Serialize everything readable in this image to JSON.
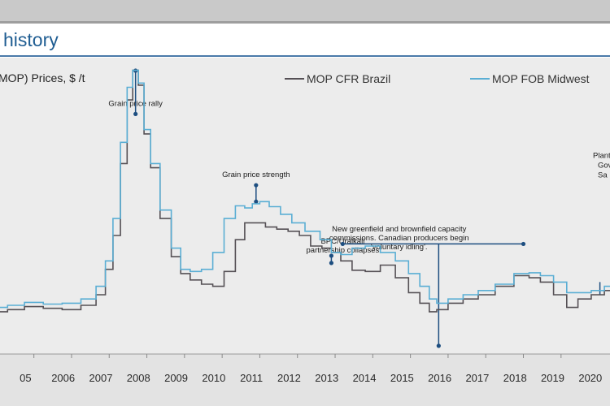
{
  "page_title": "history",
  "chart_data": {
    "type": "line",
    "title": "history",
    "ylabel": "MOP) Prices, $ /t",
    "xlabel": "",
    "ylim": [
      200,
      900
    ],
    "x_tick_labels": [
      "05",
      "2006",
      "2007",
      "2008",
      "2009",
      "2010",
      "2011",
      "2012",
      "2013",
      "2014",
      "2015",
      "2016",
      "2017",
      "2018",
      "2019",
      "2020"
    ],
    "x_tick_years": [
      2005,
      2006,
      2007,
      2008,
      2009,
      2010,
      2011,
      2012,
      2013,
      2014,
      2015,
      2016,
      2017,
      2018,
      2019,
      2020
    ],
    "xlim": [
      2005.1,
      2021.3
    ],
    "legend": [
      {
        "name": "MOP CFR Brazil",
        "color": "#555055"
      },
      {
        "name": "MOP FOB Midwest",
        "color": "#5aaed4"
      }
    ],
    "series": [
      {
        "name": "MOP CFR Brazil",
        "color": "#555055",
        "x": [
          2005.1,
          2005.5,
          2006.0,
          2006.5,
          2007.0,
          2007.5,
          2007.8,
          2008.0,
          2008.2,
          2008.4,
          2008.55,
          2008.7,
          2008.85,
          2009.0,
          2009.2,
          2009.5,
          2009.8,
          2010.0,
          2010.3,
          2010.6,
          2010.9,
          2011.2,
          2011.5,
          2011.7,
          2012.0,
          2012.3,
          2012.6,
          2012.9,
          2013.2,
          2013.5,
          2013.8,
          2014.0,
          2014.3,
          2014.6,
          2015.0,
          2015.4,
          2015.8,
          2016.1,
          2016.4,
          2016.6,
          2016.8,
          2017.2,
          2017.6,
          2018.0,
          2018.5,
          2019.0,
          2019.3,
          2019.6,
          2020.0,
          2020.3,
          2020.6,
          2021.0,
          2021.3
        ],
        "values": [
          300,
          305,
          312,
          308,
          305,
          315,
          340,
          400,
          480,
          650,
          800,
          870,
          835,
          720,
          640,
          520,
          430,
          390,
          375,
          365,
          360,
          395,
          470,
          510,
          510,
          500,
          495,
          490,
          480,
          455,
          450,
          440,
          420,
          398,
          395,
          410,
          380,
          345,
          320,
          300,
          305,
          320,
          330,
          340,
          360,
          385,
          380,
          370,
          340,
          310,
          330,
          340,
          350
        ]
      },
      {
        "name": "MOP FOB Midwest",
        "color": "#5aaed4",
        "x": [
          2005.1,
          2005.5,
          2006.0,
          2006.5,
          2007.0,
          2007.5,
          2007.8,
          2008.0,
          2008.2,
          2008.4,
          2008.55,
          2008.7,
          2008.85,
          2009.0,
          2009.2,
          2009.5,
          2009.8,
          2010.0,
          2010.3,
          2010.6,
          2010.9,
          2011.2,
          2011.5,
          2011.7,
          2011.9,
          2012.1,
          2012.4,
          2012.7,
          2013.0,
          2013.4,
          2013.8,
          2014.0,
          2014.3,
          2014.6,
          2015.0,
          2015.4,
          2015.8,
          2016.1,
          2016.4,
          2016.6,
          2016.8,
          2017.2,
          2017.6,
          2018.0,
          2018.5,
          2019.0,
          2019.3,
          2019.6,
          2020.0,
          2020.3,
          2020.6,
          2021.0,
          2021.3
        ],
        "values": [
          310,
          315,
          322,
          318,
          320,
          330,
          360,
          420,
          520,
          700,
          830,
          870,
          840,
          730,
          650,
          540,
          450,
          400,
          395,
          400,
          440,
          520,
          550,
          545,
          555,
          560,
          548,
          530,
          510,
          490,
          470,
          440,
          435,
          450,
          455,
          440,
          420,
          390,
          360,
          330,
          320,
          330,
          340,
          350,
          365,
          390,
          392,
          385,
          370,
          345,
          345,
          350,
          360
        ]
      }
    ],
    "annotations": [
      {
        "text": "Grain price rally",
        "x": 2008.7,
        "y": 875,
        "label_y": 790
      },
      {
        "text": "Grain price strength",
        "x": 2011.9,
        "y": 560,
        "label_y": 618
      },
      {
        "text": "BPC/Uralkali\npartnership collapses",
        "x": 2013.9,
        "y": 528,
        "label_y": 438
      },
      {
        "text": "New greenfield and brownfield capacity\ncommissions. Canadian producers begin\n'voluntary idling'.",
        "x": 2016.75,
        "y": 300,
        "label_y": 490
      },
      {
        "text": "Plant S\nGov\nSa",
        "x": 2020.6,
        "y": 640,
        "label_y": 640
      }
    ],
    "bracket": {
      "x_start": 2014.2,
      "x_end": 2019.0,
      "y": 460,
      "x_drop": 2016.75
    }
  }
}
